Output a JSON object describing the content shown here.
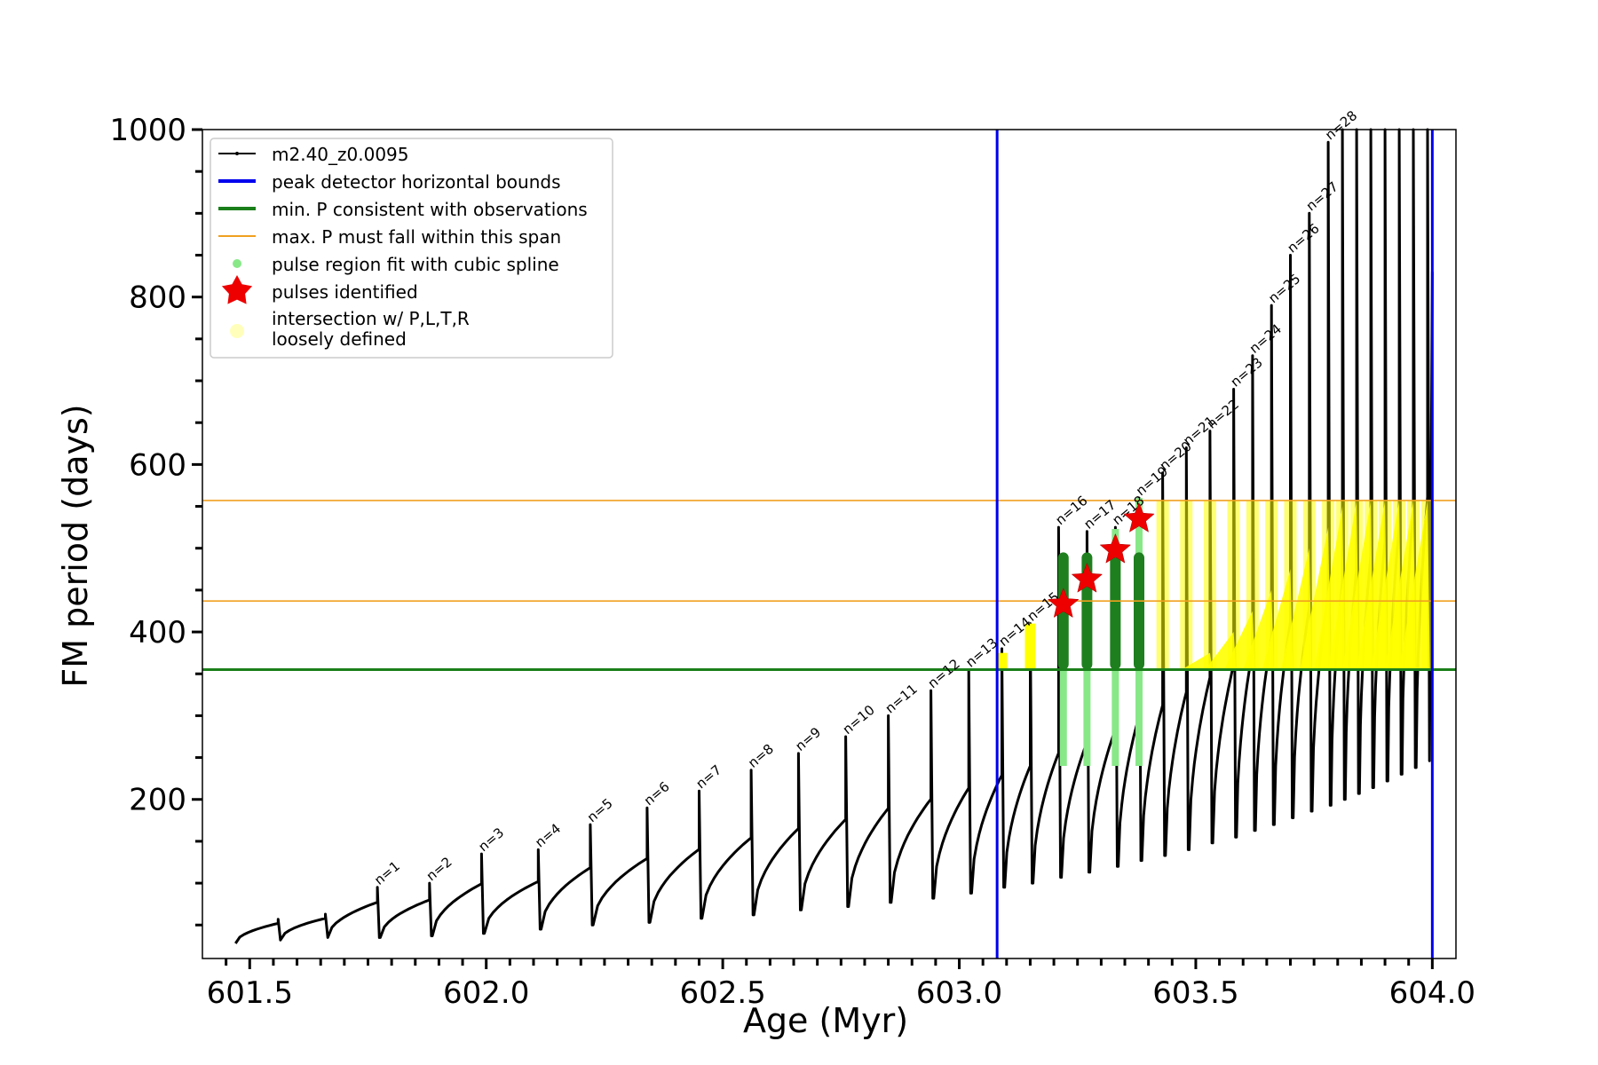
{
  "chart_data": {
    "type": "line",
    "xlabel": "Age (Myr)",
    "ylabel": "FM period (days)",
    "xlim": [
      601.4,
      604.05
    ],
    "ylim": [
      10,
      1000
    ],
    "xticks": [
      "601.5",
      "602.0",
      "602.5",
      "603.0",
      "603.5",
      "604.0"
    ],
    "xtick_values": [
      601.5,
      602.0,
      602.5,
      603.0,
      603.5,
      604.0
    ],
    "yticks": [
      "200",
      "400",
      "600",
      "800",
      "1000"
    ],
    "ytick_values": [
      200,
      400,
      600,
      800,
      1000
    ],
    "legend_position": "top-left",
    "legend": {
      "model": "m2.40_z0.0095",
      "bounds": "peak detector horizontal bounds",
      "minp": "min. P consistent with observations",
      "maxp": "max. P must fall within this span",
      "spline": "pulse region fit with cubic spline",
      "pulses": "pulses identified",
      "intersect_line1": "intersection w/ P,L,T,R",
      "intersect_line2": "loosely defined"
    },
    "colors": {
      "model": "#000000",
      "bounds": "#0000ee",
      "minp": "#1a7f1a",
      "maxp": "#f0a020",
      "spline": "#88e888",
      "pulses": "#ee0000",
      "intersect": "#ffff00",
      "intersect_legend": "#ffffbb",
      "fit_dark": "#1e7f1e"
    },
    "vertical_bounds_x": [
      603.08,
      604.0
    ],
    "min_period": 355,
    "max_period_span": [
      437,
      557
    ],
    "pulses": [
      {
        "n": "n=1",
        "x": 601.77,
        "baseline": 35,
        "peak": 95
      },
      {
        "n": "n=2",
        "x": 601.88,
        "baseline": 37,
        "peak": 100
      },
      {
        "n": "n=3",
        "x": 601.99,
        "baseline": 40,
        "peak": 135
      },
      {
        "n": "n=4",
        "x": 602.11,
        "baseline": 45,
        "peak": 140
      },
      {
        "n": "n=5",
        "x": 602.22,
        "baseline": 50,
        "peak": 170
      },
      {
        "n": "n=6",
        "x": 602.34,
        "baseline": 53,
        "peak": 190
      },
      {
        "n": "n=7",
        "x": 602.45,
        "baseline": 58,
        "peak": 210
      },
      {
        "n": "n=8",
        "x": 602.56,
        "baseline": 62,
        "peak": 235
      },
      {
        "n": "n=9",
        "x": 602.66,
        "baseline": 68,
        "peak": 255
      },
      {
        "n": "n=10",
        "x": 602.76,
        "baseline": 72,
        "peak": 275
      },
      {
        "n": "n=11",
        "x": 602.85,
        "baseline": 77,
        "peak": 300
      },
      {
        "n": "n=12",
        "x": 602.94,
        "baseline": 82,
        "peak": 330
      },
      {
        "n": "n=13",
        "x": 603.02,
        "baseline": 88,
        "peak": 355
      },
      {
        "n": "n=14",
        "x": 603.09,
        "baseline": 95,
        "peak": 380
      },
      {
        "n": "n=15",
        "x": 603.15,
        "baseline": 100,
        "peak": 410
      },
      {
        "n": "n=16",
        "x": 603.21,
        "baseline": 107,
        "peak": 525
      },
      {
        "n": "n=17",
        "x": 603.27,
        "baseline": 113,
        "peak": 520
      },
      {
        "n": "n=18",
        "x": 603.33,
        "baseline": 120,
        "peak": 525
      },
      {
        "n": "n=19",
        "x": 603.38,
        "baseline": 127,
        "peak": 560
      },
      {
        "n": "n=20",
        "x": 603.43,
        "baseline": 133,
        "peak": 590
      },
      {
        "n": "n=21",
        "x": 603.48,
        "baseline": 140,
        "peak": 620
      },
      {
        "n": "n=22",
        "x": 603.53,
        "baseline": 148,
        "peak": 640
      },
      {
        "n": "n=23",
        "x": 603.58,
        "baseline": 155,
        "peak": 690
      },
      {
        "n": "n=24",
        "x": 603.62,
        "baseline": 163,
        "peak": 730
      },
      {
        "n": "n=25",
        "x": 603.66,
        "baseline": 170,
        "peak": 790
      },
      {
        "n": "n=26",
        "x": 603.7,
        "baseline": 178,
        "peak": 850
      },
      {
        "n": "n=27",
        "x": 603.74,
        "baseline": 186,
        "peak": 900
      },
      {
        "n": "n=28",
        "x": 603.78,
        "baseline": 193,
        "peak": 985
      },
      {
        "n": "",
        "x": 603.81,
        "baseline": 200,
        "peak": 1000
      },
      {
        "n": "",
        "x": 603.84,
        "baseline": 207,
        "peak": 1000
      },
      {
        "n": "",
        "x": 603.87,
        "baseline": 214,
        "peak": 1000
      },
      {
        "n": "",
        "x": 603.9,
        "baseline": 222,
        "peak": 1000
      },
      {
        "n": "",
        "x": 603.93,
        "baseline": 230,
        "peak": 1000
      },
      {
        "n": "",
        "x": 603.96,
        "baseline": 238,
        "peak": 1000
      },
      {
        "n": "",
        "x": 603.99,
        "baseline": 246,
        "peak": 1000
      }
    ],
    "identified_pulses": [
      {
        "x": 603.22,
        "y": 433
      },
      {
        "x": 603.27,
        "y": 463
      },
      {
        "x": 603.33,
        "y": 498
      },
      {
        "x": 603.38,
        "y": 535
      }
    ]
  }
}
